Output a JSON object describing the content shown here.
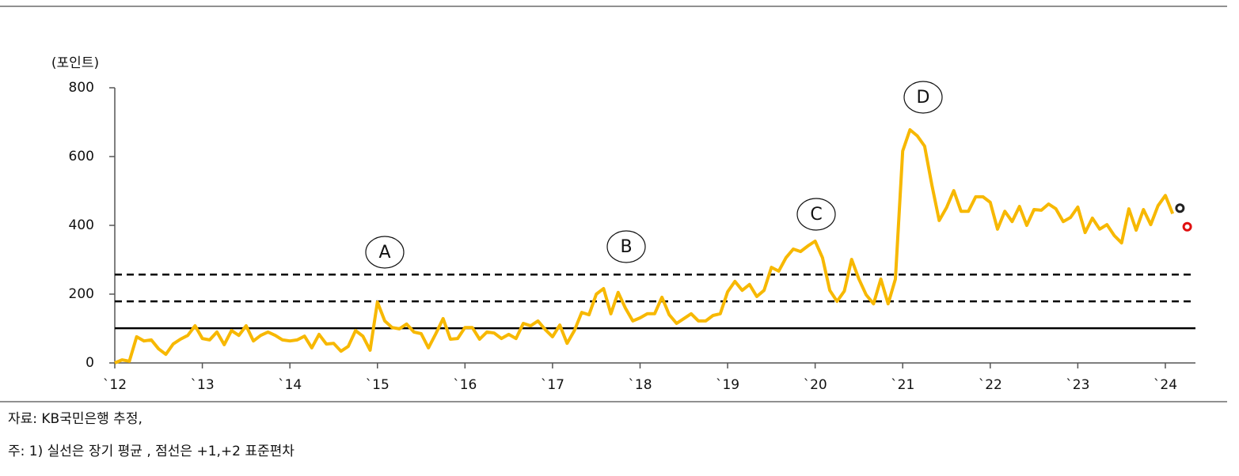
{
  "chart_data": {
    "type": "line",
    "y_label": "(포인트)",
    "categories": [
      "`12",
      null,
      null,
      null,
      null,
      null,
      null,
      null,
      null,
      null,
      null,
      null,
      "`13",
      null,
      null,
      null,
      null,
      null,
      null,
      null,
      null,
      null,
      null,
      null,
      "`14",
      null,
      null,
      null,
      null,
      null,
      null,
      null,
      null,
      null,
      null,
      null,
      "`15",
      null,
      null,
      null,
      null,
      null,
      null,
      null,
      null,
      null,
      null,
      null,
      "`16",
      null,
      null,
      null,
      null,
      null,
      null,
      null,
      null,
      null,
      null,
      null,
      "`17",
      null,
      null,
      null,
      null,
      null,
      null,
      null,
      null,
      null,
      null,
      null,
      "`18",
      null,
      null,
      null,
      null,
      null,
      null,
      null,
      null,
      null,
      null,
      null,
      "`19",
      null,
      null,
      null,
      null,
      null,
      null,
      null,
      null,
      null,
      null,
      null,
      "`20",
      null,
      null,
      null,
      null,
      null,
      null,
      null,
      null,
      null,
      null,
      null,
      "`21",
      null,
      null,
      null,
      null,
      null,
      null,
      null,
      null,
      null,
      null,
      null,
      "`22",
      null,
      null,
      null,
      null,
      null,
      null,
      null,
      null,
      null,
      null,
      null,
      "`23",
      null,
      null,
      null,
      null,
      null,
      null,
      null,
      null,
      null,
      null,
      null,
      "`24",
      null,
      null,
      null
    ],
    "series": [
      {
        "color": "#f7b800",
        "style": "line",
        "values": [
          0,
          9,
          5,
          76,
          64,
          67,
          41,
          25,
          55,
          69,
          80,
          108,
          71,
          67,
          90,
          53,
          94,
          80,
          108,
          64,
          80,
          90,
          80,
          67,
          64,
          67,
          78,
          44,
          83,
          55,
          57,
          34,
          48,
          94,
          78,
          37,
          177,
          122,
          103,
          99,
          113,
          90,
          85,
          44,
          85,
          129,
          69,
          71,
          103,
          103,
          69,
          90,
          87,
          71,
          83,
          71,
          115,
          108,
          122,
          97,
          76,
          110,
          57,
          94,
          147,
          140,
          200,
          216,
          143,
          205,
          159,
          122,
          131,
          143,
          143,
          191,
          140,
          115,
          129,
          143,
          122,
          122,
          138,
          143,
          207,
          237,
          211,
          228,
          193,
          211,
          278,
          267,
          306,
          331,
          324,
          340,
          354,
          306,
          211,
          179,
          209,
          301,
          244,
          198,
          172,
          244,
          172,
          244,
          616,
          678,
          660,
          630,
          517,
          414,
          451,
          501,
          441,
          441,
          483,
          483,
          467,
          389,
          441,
          411,
          455,
          400,
          446,
          444,
          462,
          448,
          411,
          423,
          453,
          379,
          421,
          389,
          402,
          370,
          349,
          448,
          386,
          446,
          402,
          457,
          487,
          434,
          null,
          null
        ]
      },
      {
        "color": "#222222",
        "style": "marker",
        "values": [
          null,
          null,
          null,
          null,
          null,
          null,
          null,
          null,
          null,
          null,
          null,
          null,
          null,
          null,
          null,
          null,
          null,
          null,
          null,
          null,
          null,
          null,
          null,
          null,
          null,
          null,
          null,
          null,
          null,
          null,
          null,
          null,
          null,
          null,
          null,
          null,
          null,
          null,
          null,
          null,
          null,
          null,
          null,
          null,
          null,
          null,
          null,
          null,
          null,
          null,
          null,
          null,
          null,
          null,
          null,
          null,
          null,
          null,
          null,
          null,
          null,
          null,
          null,
          null,
          null,
          null,
          null,
          null,
          null,
          null,
          null,
          null,
          null,
          null,
          null,
          null,
          null,
          null,
          null,
          null,
          null,
          null,
          null,
          null,
          null,
          null,
          null,
          null,
          null,
          null,
          null,
          null,
          null,
          null,
          null,
          null,
          null,
          null,
          null,
          null,
          null,
          null,
          null,
          null,
          null,
          null,
          null,
          null,
          null,
          null,
          null,
          null,
          null,
          null,
          null,
          null,
          null,
          null,
          null,
          null,
          null,
          null,
          null,
          null,
          null,
          null,
          null,
          null,
          null,
          null,
          null,
          null,
          null,
          null,
          null,
          null,
          null,
          null,
          null,
          null,
          null,
          null,
          null,
          null,
          null,
          null,
          450,
          null
        ]
      },
      {
        "color": "#e01010",
        "style": "marker",
        "values": [
          null,
          null,
          null,
          null,
          null,
          null,
          null,
          null,
          null,
          null,
          null,
          null,
          null,
          null,
          null,
          null,
          null,
          null,
          null,
          null,
          null,
          null,
          null,
          null,
          null,
          null,
          null,
          null,
          null,
          null,
          null,
          null,
          null,
          null,
          null,
          null,
          null,
          null,
          null,
          null,
          null,
          null,
          null,
          null,
          null,
          null,
          null,
          null,
          null,
          null,
          null,
          null,
          null,
          null,
          null,
          null,
          null,
          null,
          null,
          null,
          null,
          null,
          null,
          null,
          null,
          null,
          null,
          null,
          null,
          null,
          null,
          null,
          null,
          null,
          null,
          null,
          null,
          null,
          null,
          null,
          null,
          null,
          null,
          null,
          null,
          null,
          null,
          null,
          null,
          null,
          null,
          null,
          null,
          null,
          null,
          null,
          null,
          null,
          null,
          null,
          null,
          null,
          null,
          null,
          null,
          null,
          null,
          null,
          null,
          null,
          null,
          null,
          null,
          null,
          null,
          null,
          null,
          null,
          null,
          null,
          null,
          null,
          null,
          null,
          null,
          null,
          null,
          null,
          null,
          null,
          null,
          null,
          null,
          null,
          null,
          null,
          null,
          null,
          null,
          null,
          null,
          null,
          null,
          null,
          null,
          null,
          null,
          396
        ]
      }
    ],
    "hlines": [
      {
        "value": 101,
        "style": "solid"
      },
      {
        "value": 179,
        "style": "dashed"
      },
      {
        "value": 257,
        "style": "dashed"
      }
    ],
    "annotations": [
      "A",
      "B",
      "C",
      "D"
    ],
    "ylim": [
      0,
      800
    ],
    "yticks": [
      0,
      200,
      400,
      600,
      800
    ],
    "notes": [
      "자료: KB국민은행 추정,",
      "주: 1) 실선은 장기 평균 , 점선은 +1,+2 표준편차"
    ]
  }
}
